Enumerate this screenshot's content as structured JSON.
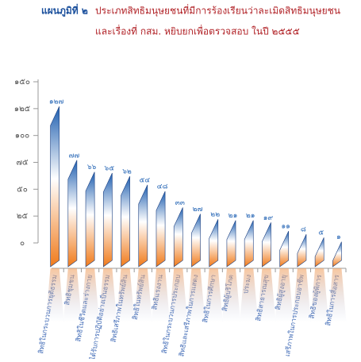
{
  "chart_data": {
    "type": "bar",
    "label": "แผนภูมิที่ ๒",
    "title": "ประเภทสิทธิมนุษยชนที่มีการร้องเรียนว่าละเมิดสิทธิมนุษยชน",
    "subtitle": "และเรื่องที่ กสม. หยิบยกเพื่อตรวจสอบ ในปี ๒๕๕๕",
    "categories": [
      "สิทธิในกระบวนการยุติธรรม",
      "สิทธิชุมชน",
      "สิทธิในชีวิตและร่างกาย",
      "ไม่ได้รับการปฏิบัติอย่างเป็นธรรม",
      "สิทธิเสรีภาพในทรัพย์สิน",
      "สิทธิในทรัพย์สิน",
      "สิทธิแรงงาน",
      "สิทธิในกระบวนการประกอบ",
      "สิทธิและเสรีภาพในการแสดง",
      "สิทธิในการศึกษา",
      "สิทธิผู้บริโภค",
      "ประมง",
      "สิทธิสาธารณสุข",
      "สิทธิผู้สูงอายุ",
      "เสรีภาพในการประกอบอาชีพ",
      "สิทธิของผู้พิการ",
      "สิทธิในการสื่อสาร"
    ],
    "values": [
      127,
      77,
      66,
      65,
      62,
      54,
      48,
      33,
      27,
      22,
      21,
      21,
      19,
      11,
      8,
      5,
      1
    ],
    "value_labels": [
      "๑๒๗",
      "๗๗",
      "๖๖",
      "๖๕",
      "๖๒",
      "๕๔",
      "๔๘",
      "๓๓",
      "๒๗",
      "๒๒",
      "๒๑",
      "๒๑",
      "๑๙",
      "๑๑",
      "๘",
      "๕",
      "๑"
    ],
    "ylim": [
      0,
      150
    ],
    "yticks": [
      {
        "value": 0,
        "label": "๐"
      },
      {
        "value": 25,
        "label": "๒๕"
      },
      {
        "value": 50,
        "label": "๕๐"
      },
      {
        "value": 75,
        "label": "๗๕"
      },
      {
        "value": 100,
        "label": "๑๐๐"
      },
      {
        "value": 125,
        "label": "๑๒๕"
      },
      {
        "value": 150,
        "label": "๑๕๐"
      }
    ],
    "colors": [
      "#1f5fb0",
      "#f07a1a"
    ]
  }
}
